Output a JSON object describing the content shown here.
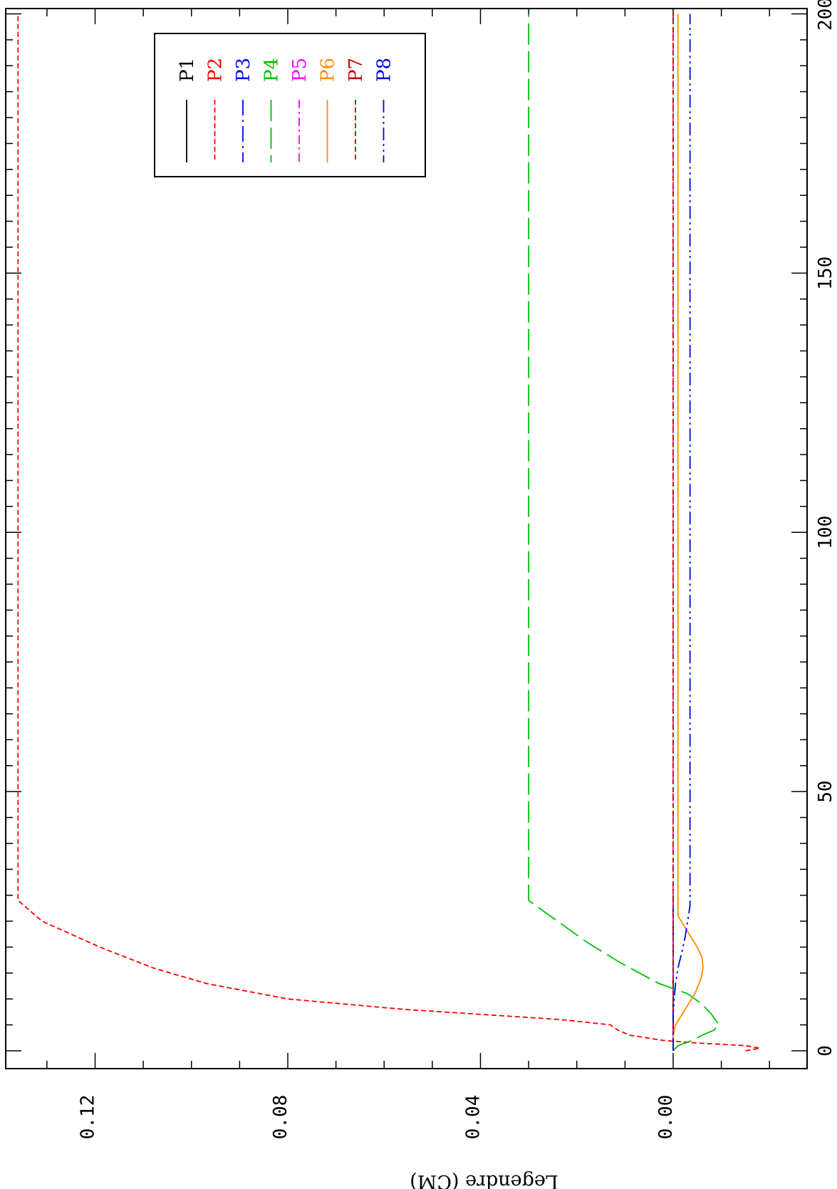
{
  "chart_data": {
    "type": "line",
    "title": "",
    "xlabel": "",
    "ylabel": "Legendre (CM)",
    "xlim": [
      0,
      200
    ],
    "ylim": [
      -0.019,
      0.14
    ],
    "x_ticks": [
      0,
      50,
      100,
      150,
      200
    ],
    "x_tick_labels": [
      "0",
      "50",
      "100",
      "150",
      "200"
    ],
    "y_ticks": [
      0.0,
      0.04,
      0.08,
      0.12
    ],
    "y_tick_labels": [
      "0.00",
      "0.04",
      "0.08",
      "0.12"
    ],
    "legend_position": "top-right",
    "grid": false,
    "series": [
      {
        "name": "P1",
        "color": "#000000",
        "dash": "solid",
        "x": [
          0,
          30
        ],
        "y": [
          0.0,
          0.0
        ]
      },
      {
        "name": "P2",
        "color": "#ff0000",
        "dash": "short-dash",
        "x": [
          0,
          0.5,
          1,
          1.5,
          2,
          3,
          4,
          5,
          6,
          8,
          10,
          13,
          16,
          20,
          25,
          29,
          200
        ],
        "y": [
          -0.015,
          -0.018,
          -0.015,
          -0.005,
          0.002,
          0.009,
          0.0115,
          0.013,
          0.023,
          0.056,
          0.08,
          0.097,
          0.108,
          0.119,
          0.131,
          0.136,
          0.136
        ]
      },
      {
        "name": "P3",
        "color": "#0000ff",
        "dash": "long-dash-dot",
        "x": [
          0,
          30
        ],
        "y": [
          0.0,
          0.0
        ]
      },
      {
        "name": "P4",
        "color": "#00c000",
        "dash": "long-dash",
        "x": [
          0,
          1,
          2,
          3,
          4,
          5,
          7,
          9,
          11,
          13,
          17,
          21,
          25,
          29,
          200
        ],
        "y": [
          0.0,
          -0.001,
          -0.004,
          -0.006,
          -0.0085,
          -0.0095,
          -0.008,
          -0.006,
          -0.003,
          0.003,
          0.011,
          0.018,
          0.024,
          0.03,
          0.03
        ]
      },
      {
        "name": "P5",
        "color": "#ff00ff",
        "dash": "dash-dot",
        "x": [
          0,
          30,
          200
        ],
        "y": [
          0.0,
          0.0,
          0.0
        ]
      },
      {
        "name": "P6",
        "color": "#ff8c00",
        "dash": "solid",
        "x": [
          0,
          3,
          5,
          8,
          11,
          14,
          16,
          18,
          20,
          23,
          26,
          29,
          200
        ],
        "y": [
          0.0,
          0.0,
          -0.0005,
          -0.0025,
          -0.0045,
          -0.0058,
          -0.0062,
          -0.006,
          -0.005,
          -0.003,
          -0.001,
          -0.001,
          -0.001
        ]
      },
      {
        "name": "P7",
        "color": "#cc0000",
        "dash": "short-dash",
        "x": [
          0,
          30,
          200
        ],
        "y": [
          0.0,
          0.0,
          0.0
        ]
      },
      {
        "name": "P8",
        "color": "#0000ee",
        "dash": "dash-dot-dot",
        "x": [
          0,
          7,
          10,
          13,
          16,
          19,
          22,
          25,
          28,
          200
        ],
        "y": [
          0.0,
          0.0,
          -0.0002,
          -0.0005,
          -0.001,
          -0.0018,
          -0.0025,
          -0.003,
          -0.0035,
          -0.0035
        ]
      }
    ]
  }
}
